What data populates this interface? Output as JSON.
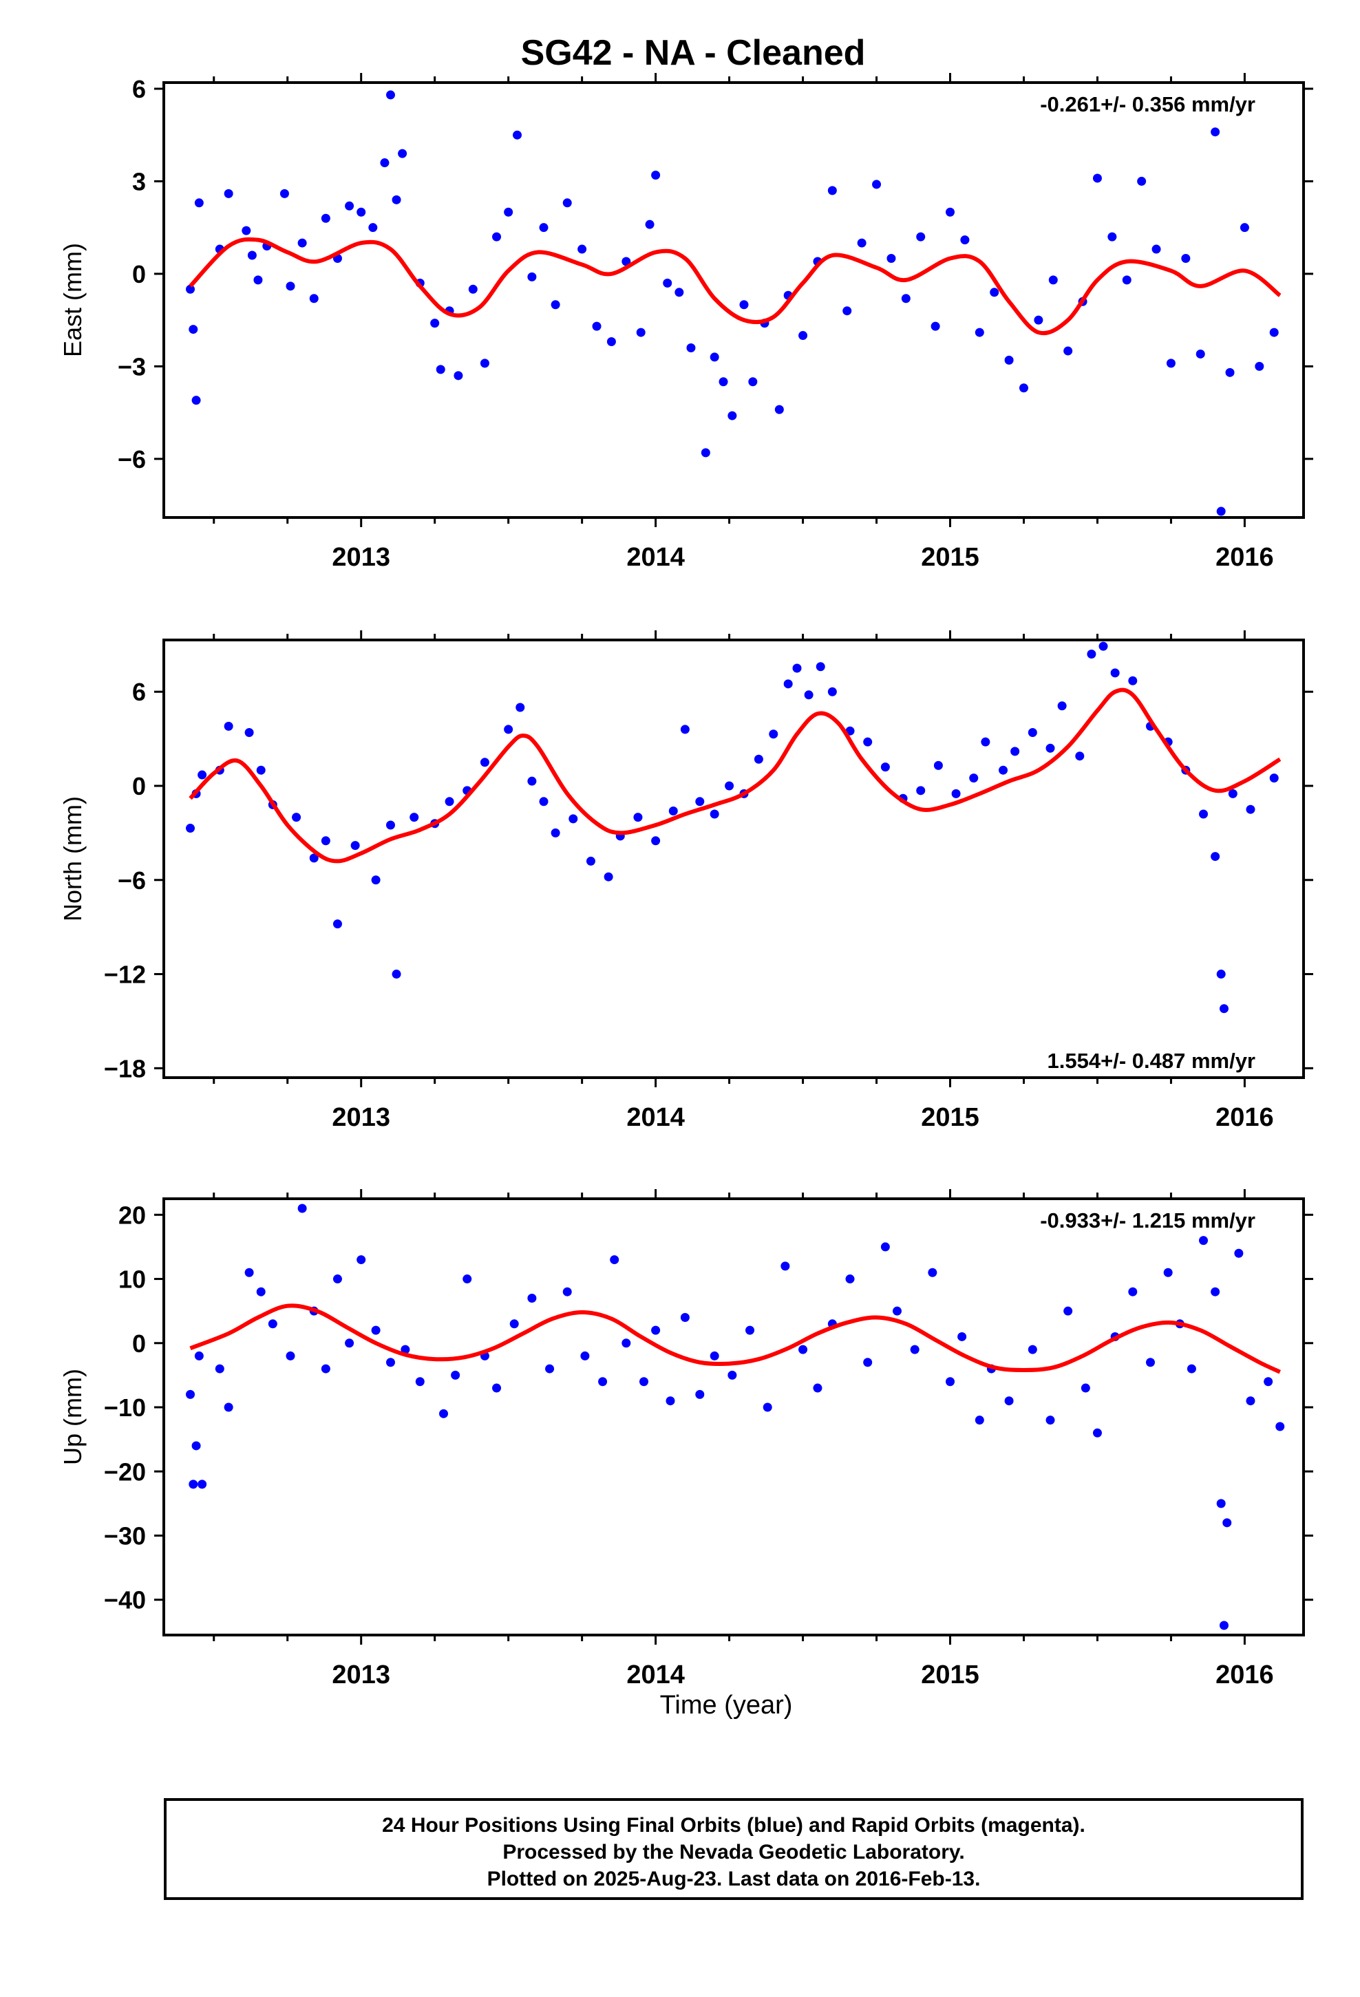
{
  "figure": {
    "title": "SG42  - NA - Cleaned",
    "xlabel": "Time (year)",
    "footer": [
      "24 Hour Positions Using Final Orbits (blue) and Rapid Orbits (magenta).",
      "Processed by the Nevada Geodetic Laboratory.",
      "Plotted on 2025-Aug-23. Last data on 2016-Feb-13."
    ],
    "colors": {
      "points": "#0000ff",
      "fit": "#ff0000",
      "frame": "#000000"
    }
  },
  "chart_data": [
    {
      "type": "scatter",
      "id": "east",
      "ylabel": "East (mm)",
      "rate_text": "-0.261+/- 0.356 mm/yr",
      "rate_position": "top-right",
      "xlim": [
        2012.33,
        2016.2
      ],
      "ylim": [
        -7.9,
        6.2
      ],
      "xticks": [
        2013,
        2014,
        2015,
        2016
      ],
      "yticks": [
        6,
        3,
        0,
        -3,
        -6
      ],
      "ytick_labels": [
        "6",
        "3",
        "0",
        "−3",
        "−6"
      ],
      "series": [
        {
          "kind": "scatter",
          "x": [
            2012.42,
            2012.43,
            2012.44,
            2012.45,
            2012.52,
            2012.55,
            2012.61,
            2012.63,
            2012.65,
            2012.68,
            2012.74,
            2012.76,
            2012.8,
            2012.84,
            2012.88,
            2012.92,
            2012.96,
            2013.0,
            2013.04,
            2013.08,
            2013.1,
            2013.12,
            2013.14,
            2013.2,
            2013.25,
            2013.27,
            2013.3,
            2013.33,
            2013.38,
            2013.42,
            2013.46,
            2013.5,
            2013.53,
            2013.58,
            2013.62,
            2013.66,
            2013.7,
            2013.75,
            2013.8,
            2013.85,
            2013.9,
            2013.95,
            2013.98,
            2014.0,
            2014.04,
            2014.08,
            2014.12,
            2014.17,
            2014.2,
            2014.23,
            2014.26,
            2014.3,
            2014.33,
            2014.37,
            2014.42,
            2014.45,
            2014.5,
            2014.55,
            2014.6,
            2014.65,
            2014.7,
            2014.75,
            2014.8,
            2014.85,
            2014.9,
            2014.95,
            2015.0,
            2015.05,
            2015.1,
            2015.15,
            2015.2,
            2015.25,
            2015.3,
            2015.35,
            2015.4,
            2015.45,
            2015.5,
            2015.55,
            2015.6,
            2015.65,
            2015.7,
            2015.75,
            2015.8,
            2015.85,
            2015.9,
            2015.92,
            2015.95,
            2016.0,
            2016.05,
            2016.1
          ],
          "y": [
            -0.5,
            -1.8,
            -4.1,
            2.3,
            0.8,
            2.6,
            1.4,
            0.6,
            -0.2,
            0.9,
            2.6,
            -0.4,
            1.0,
            -0.8,
            1.8,
            0.5,
            2.2,
            2.0,
            1.5,
            3.6,
            5.8,
            2.4,
            3.9,
            -0.3,
            -1.6,
            -3.1,
            -1.2,
            -3.3,
            -0.5,
            -2.9,
            1.2,
            2.0,
            4.5,
            -0.1,
            1.5,
            -1.0,
            2.3,
            0.8,
            -1.7,
            -2.2,
            0.4,
            -1.9,
            1.6,
            3.2,
            -0.3,
            -0.6,
            -2.4,
            -5.8,
            -2.7,
            -3.5,
            -4.6,
            -1.0,
            -3.5,
            -1.6,
            -4.4,
            -0.7,
            -2.0,
            0.4,
            2.7,
            -1.2,
            1.0,
            2.9,
            0.5,
            -0.8,
            1.2,
            -1.7,
            2.0,
            1.1,
            -1.9,
            -0.6,
            -2.8,
            -3.7,
            -1.5,
            -0.2,
            -2.5,
            -0.9,
            3.1,
            1.2,
            -0.2,
            3.0,
            0.8,
            -2.9,
            0.5,
            -2.6,
            4.6,
            -7.7,
            -3.2,
            1.5,
            -3.0,
            -1.9
          ]
        },
        {
          "kind": "fit",
          "formula": "0.0 + 0.5*sin(2*pi*(t-2012.2)) + 0.5*sin(4*pi*(t-2012.0)) + harmonics",
          "x": [
            2012.42,
            2012.55,
            2012.65,
            2012.75,
            2012.85,
            2013.0,
            2013.1,
            2013.2,
            2013.3,
            2013.4,
            2013.5,
            2013.6,
            2013.75,
            2013.85,
            2014.0,
            2014.1,
            2014.2,
            2014.3,
            2014.4,
            2014.5,
            2014.6,
            2014.75,
            2014.85,
            2015.0,
            2015.1,
            2015.2,
            2015.3,
            2015.4,
            2015.5,
            2015.6,
            2015.75,
            2015.85,
            2016.0,
            2016.12
          ],
          "y": [
            -0.4,
            0.9,
            1.1,
            0.7,
            0.4,
            1.0,
            0.8,
            -0.4,
            -1.3,
            -1.1,
            0.1,
            0.7,
            0.3,
            0.0,
            0.7,
            0.5,
            -0.8,
            -1.5,
            -1.4,
            -0.3,
            0.6,
            0.2,
            -0.2,
            0.5,
            0.4,
            -0.9,
            -1.9,
            -1.5,
            -0.2,
            0.4,
            0.1,
            -0.4,
            0.1,
            -0.7
          ]
        }
      ]
    },
    {
      "type": "scatter",
      "id": "north",
      "ylabel": "North (mm)",
      "rate_text": "1.554+/- 0.487 mm/yr",
      "rate_position": "bottom-right",
      "xlim": [
        2012.33,
        2016.2
      ],
      "ylim": [
        -18.6,
        9.3
      ],
      "xticks": [
        2013,
        2014,
        2015,
        2016
      ],
      "yticks": [
        6,
        0,
        -6,
        -12,
        -18
      ],
      "ytick_labels": [
        "6",
        "0",
        "−6",
        "−12",
        "−18"
      ],
      "series": [
        {
          "kind": "scatter",
          "x": [
            2012.42,
            2012.44,
            2012.46,
            2012.52,
            2012.55,
            2012.62,
            2012.66,
            2012.7,
            2012.78,
            2012.84,
            2012.88,
            2012.92,
            2012.98,
            2013.05,
            2013.1,
            2013.12,
            2013.18,
            2013.25,
            2013.3,
            2013.36,
            2013.42,
            2013.5,
            2013.54,
            2013.58,
            2013.62,
            2013.66,
            2013.72,
            2013.78,
            2013.84,
            2013.88,
            2013.94,
            2014.0,
            2014.06,
            2014.1,
            2014.15,
            2014.2,
            2014.25,
            2014.3,
            2014.35,
            2014.4,
            2014.45,
            2014.48,
            2014.52,
            2014.56,
            2014.6,
            2014.66,
            2014.72,
            2014.78,
            2014.84,
            2014.9,
            2014.96,
            2015.02,
            2015.08,
            2015.12,
            2015.18,
            2015.22,
            2015.28,
            2015.34,
            2015.38,
            2015.44,
            2015.48,
            2015.52,
            2015.56,
            2015.62,
            2015.68,
            2015.74,
            2015.8,
            2015.86,
            2015.9,
            2015.92,
            2015.93,
            2015.96,
            2016.02,
            2016.1
          ],
          "y": [
            -2.7,
            -0.5,
            0.7,
            1.0,
            3.8,
            3.4,
            1.0,
            -1.2,
            -2.0,
            -4.6,
            -3.5,
            -8.8,
            -3.8,
            -6.0,
            -2.5,
            -12.0,
            -2.0,
            -2.4,
            -1.0,
            -0.3,
            1.5,
            3.6,
            5.0,
            0.3,
            -1.0,
            -3.0,
            -2.1,
            -4.8,
            -5.8,
            -3.2,
            -2.0,
            -3.5,
            -1.6,
            3.6,
            -1.0,
            -1.8,
            0.0,
            -0.5,
            1.7,
            3.3,
            6.5,
            7.5,
            5.8,
            7.6,
            6.0,
            3.5,
            2.8,
            1.2,
            -0.8,
            -0.3,
            1.3,
            -0.5,
            0.5,
            2.8,
            1.0,
            2.2,
            3.4,
            2.4,
            5.1,
            1.9,
            8.4,
            8.9,
            7.2,
            6.7,
            3.8,
            2.8,
            1.0,
            -1.8,
            -4.5,
            -12.0,
            -14.2,
            -0.5,
            -1.5,
            0.5
          ]
        },
        {
          "kind": "fit",
          "x": [
            2012.42,
            2012.5,
            2012.58,
            2012.66,
            2012.75,
            2012.85,
            2012.92,
            2013.0,
            2013.1,
            2013.2,
            2013.3,
            2013.4,
            2013.5,
            2013.55,
            2013.6,
            2013.7,
            2013.8,
            2013.88,
            2014.0,
            2014.1,
            2014.2,
            2014.3,
            2014.4,
            2014.48,
            2014.55,
            2014.62,
            2014.7,
            2014.8,
            2014.9,
            2015.0,
            2015.1,
            2015.2,
            2015.3,
            2015.4,
            2015.5,
            2015.56,
            2015.62,
            2015.7,
            2015.8,
            2015.9,
            2016.0,
            2016.12
          ],
          "y": [
            -0.8,
            0.8,
            1.6,
            0.0,
            -2.5,
            -4.3,
            -4.8,
            -4.3,
            -3.4,
            -2.8,
            -1.8,
            0.2,
            2.5,
            3.2,
            2.5,
            -0.5,
            -2.4,
            -3.0,
            -2.5,
            -1.8,
            -1.2,
            -0.5,
            1.0,
            3.3,
            4.6,
            4.0,
            1.7,
            -0.4,
            -1.5,
            -1.2,
            -0.5,
            0.3,
            1.0,
            2.5,
            4.8,
            6.0,
            5.8,
            3.6,
            1.0,
            -0.3,
            0.3,
            1.7
          ]
        }
      ]
    },
    {
      "type": "scatter",
      "id": "up",
      "ylabel": "Up (mm)",
      "rate_text": "-0.933+/- 1.215 mm/yr",
      "rate_position": "top-right",
      "xlim": [
        2012.33,
        2016.2
      ],
      "ylim": [
        -45.5,
        22.5
      ],
      "xticks": [
        2013,
        2014,
        2015,
        2016
      ],
      "yticks": [
        20,
        10,
        0,
        -10,
        -20,
        -30,
        -40
      ],
      "ytick_labels": [
        "20",
        "10",
        "0",
        "−10",
        "−20",
        "−30",
        "−40"
      ],
      "series": [
        {
          "kind": "scatter",
          "x": [
            2012.42,
            2012.43,
            2012.44,
            2012.45,
            2012.46,
            2012.52,
            2012.55,
            2012.62,
            2012.66,
            2012.7,
            2012.76,
            2012.8,
            2012.84,
            2012.88,
            2012.92,
            2012.96,
            2013.0,
            2013.05,
            2013.1,
            2013.15,
            2013.2,
            2013.28,
            2013.32,
            2013.36,
            2013.42,
            2013.46,
            2013.52,
            2013.58,
            2013.64,
            2013.7,
            2013.76,
            2013.82,
            2013.86,
            2013.9,
            2013.96,
            2014.0,
            2014.05,
            2014.1,
            2014.15,
            2014.2,
            2014.26,
            2014.32,
            2014.38,
            2014.44,
            2014.5,
            2014.55,
            2014.6,
            2014.66,
            2014.72,
            2014.78,
            2014.82,
            2014.88,
            2014.94,
            2015.0,
            2015.04,
            2015.1,
            2015.14,
            2015.2,
            2015.28,
            2015.34,
            2015.4,
            2015.46,
            2015.5,
            2015.56,
            2015.62,
            2015.68,
            2015.74,
            2015.78,
            2015.82,
            2015.86,
            2015.9,
            2015.92,
            2015.93,
            2015.94,
            2015.98,
            2016.02,
            2016.08,
            2016.12
          ],
          "y": [
            -8,
            -22,
            -16,
            -2,
            -22,
            -4,
            -10,
            11,
            8,
            3,
            -2,
            21,
            5,
            -4,
            10,
            0,
            13,
            2,
            -3,
            -1,
            -6,
            -11,
            -5,
            10,
            -2,
            -7,
            3,
            7,
            -4,
            8,
            -2,
            -6,
            13,
            0,
            -6,
            2,
            -9,
            4,
            -8,
            -2,
            -5,
            2,
            -10,
            12,
            -1,
            -7,
            3,
            10,
            -3,
            15,
            5,
            -1,
            11,
            -6,
            1,
            -12,
            -4,
            -9,
            -1,
            -12,
            5,
            -7,
            -14,
            1,
            8,
            -3,
            11,
            3,
            -4,
            16,
            8,
            -25,
            -44,
            -28,
            14,
            -9,
            -6,
            -13
          ]
        },
        {
          "kind": "fit",
          "x": [
            2012.42,
            2012.55,
            2012.65,
            2012.75,
            2012.85,
            2012.95,
            2013.05,
            2013.15,
            2013.25,
            2013.35,
            2013.45,
            2013.55,
            2013.65,
            2013.75,
            2013.85,
            2013.95,
            2014.05,
            2014.15,
            2014.25,
            2014.35,
            2014.45,
            2014.55,
            2014.65,
            2014.75,
            2014.85,
            2014.95,
            2015.05,
            2015.15,
            2015.25,
            2015.35,
            2015.45,
            2015.55,
            2015.65,
            2015.75,
            2015.85,
            2015.95,
            2016.05,
            2016.12
          ],
          "y": [
            -0.8,
            1.5,
            4.0,
            5.8,
            5.0,
            2.5,
            0.0,
            -1.8,
            -2.5,
            -2.2,
            -0.8,
            1.5,
            3.8,
            4.8,
            3.8,
            1.0,
            -1.5,
            -3.0,
            -3.2,
            -2.5,
            -0.8,
            1.5,
            3.2,
            4.0,
            3.0,
            0.5,
            -2.0,
            -3.8,
            -4.2,
            -3.8,
            -2.0,
            0.5,
            2.5,
            3.2,
            2.0,
            -0.5,
            -3.0,
            -4.5
          ]
        }
      ]
    }
  ]
}
